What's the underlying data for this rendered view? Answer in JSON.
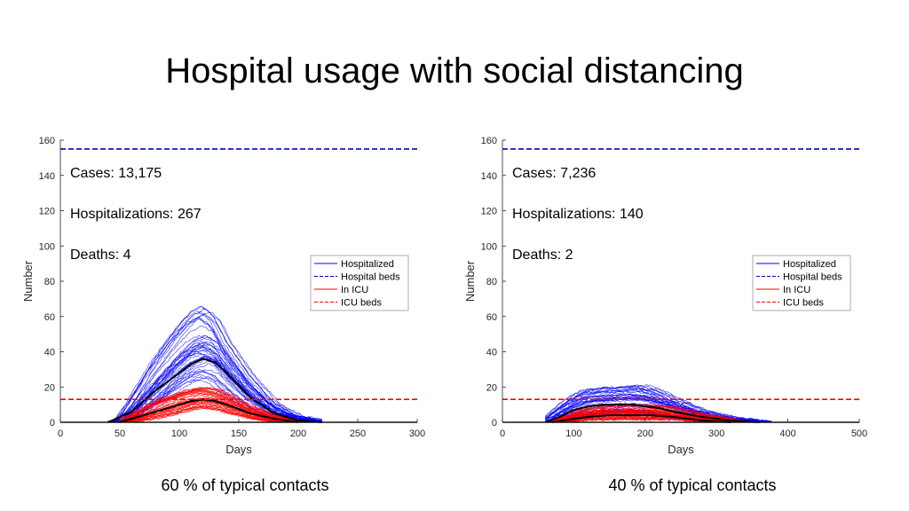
{
  "slide": {
    "title": "Hospital usage with social distancing",
    "captions": [
      "60 % of typical contacts",
      "40 % of typical contacts"
    ]
  },
  "colors": {
    "hospitalized": "#0000ff",
    "icu": "#ff0000",
    "mean": "#000000",
    "hospital_beds": "#0000cc",
    "icu_beds": "#ff0000"
  },
  "chart_data": [
    {
      "type": "line",
      "xlabel": "Days",
      "ylabel": "Number",
      "xlim": [
        0,
        300
      ],
      "ylim": [
        0,
        160
      ],
      "xticks": [
        0,
        50,
        100,
        150,
        200,
        250,
        300
      ],
      "yticks": [
        0,
        20,
        40,
        60,
        80,
        100,
        120,
        140,
        160
      ],
      "annotations": [
        "Cases: 13,175",
        "Hospitalizations: 267",
        "Deaths: 4"
      ],
      "legend": {
        "position": "right",
        "entries": [
          "Hospitalized",
          "Hospital beds",
          "In ICU",
          "ICU beds"
        ]
      },
      "hospital_beds": 155,
      "icu_beds": 13,
      "hospitalized_mean": {
        "x": [
          40,
          60,
          80,
          100,
          110,
          120,
          130,
          140,
          160,
          180,
          200,
          220
        ],
        "y": [
          0,
          6,
          18,
          28,
          33,
          36,
          34,
          28,
          14,
          5,
          1,
          0
        ]
      },
      "icu_mean": {
        "x": [
          50,
          60,
          80,
          100,
          110,
          120,
          130,
          140,
          160,
          180,
          200
        ],
        "y": [
          0,
          2,
          6,
          10,
          12,
          13,
          12,
          10,
          5,
          2,
          0
        ]
      },
      "hospitalized_envelope": {
        "x": [
          40,
          50,
          60,
          80,
          100,
          110,
          120,
          130,
          140,
          160,
          180,
          200,
          220
        ],
        "min": [
          0,
          0,
          1,
          8,
          18,
          22,
          24,
          22,
          16,
          6,
          1,
          0,
          0
        ],
        "max": [
          0,
          1,
          12,
          36,
          55,
          63,
          67,
          62,
          48,
          28,
          12,
          4,
          1
        ]
      },
      "icu_envelope": {
        "x": [
          50,
          60,
          80,
          100,
          110,
          120,
          130,
          140,
          160,
          180,
          200
        ],
        "min": [
          0,
          0,
          2,
          5,
          7,
          8,
          7,
          5,
          2,
          0,
          0
        ],
        "max": [
          0,
          4,
          12,
          17,
          19,
          20,
          19,
          16,
          9,
          4,
          1
        ]
      }
    },
    {
      "type": "line",
      "xlabel": "Days",
      "ylabel": "Number",
      "xlim": [
        0,
        500
      ],
      "ylim": [
        0,
        160
      ],
      "xticks": [
        0,
        100,
        200,
        300,
        400,
        500
      ],
      "yticks": [
        0,
        20,
        40,
        60,
        80,
        100,
        120,
        140,
        160
      ],
      "annotations": [
        "Cases: 7,236",
        "Hospitalizations: 140",
        "Deaths: 2"
      ],
      "legend": {
        "position": "right",
        "entries": [
          "Hospitalized",
          "Hospital beds",
          "In ICU",
          "ICU beds"
        ]
      },
      "hospital_beds": 155,
      "icu_beds": 13,
      "hospitalized_mean": {
        "x": [
          60,
          80,
          100,
          120,
          140,
          160,
          180,
          200,
          220,
          240,
          280,
          320,
          360
        ],
        "y": [
          0,
          3,
          7,
          9,
          10,
          10,
          10,
          9,
          8,
          6,
          3,
          1,
          0
        ]
      },
      "icu_mean": {
        "x": [
          70,
          100,
          120,
          150,
          180,
          210,
          240,
          280,
          320
        ],
        "y": [
          0,
          2,
          3,
          4,
          4,
          4,
          3,
          1,
          0
        ]
      },
      "hospitalized_envelope": {
        "x": [
          60,
          80,
          100,
          120,
          140,
          160,
          180,
          200,
          220,
          240,
          280,
          320,
          360,
          380
        ],
        "min": [
          0,
          0,
          1,
          3,
          4,
          5,
          5,
          4,
          3,
          2,
          1,
          0,
          0,
          0
        ],
        "max": [
          0,
          8,
          15,
          19,
          20,
          20,
          21,
          21,
          18,
          14,
          7,
          3,
          1,
          0
        ]
      },
      "icu_envelope": {
        "x": [
          70,
          100,
          120,
          150,
          180,
          210,
          240,
          280,
          320,
          340
        ],
        "min": [
          0,
          0,
          1,
          1,
          1,
          1,
          1,
          0,
          0,
          0
        ],
        "max": [
          0,
          6,
          9,
          10,
          10,
          10,
          9,
          5,
          2,
          0
        ]
      }
    }
  ]
}
